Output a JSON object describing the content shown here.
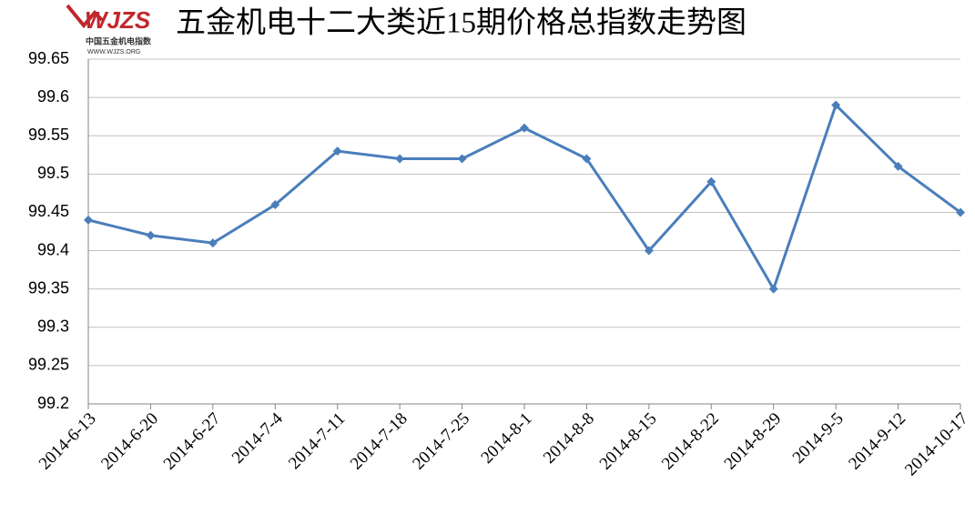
{
  "logo": {
    "mark": "WJZS",
    "name": "中国五金机电指数",
    "url": "WWW.WJZS.ORG"
  },
  "chart_data": {
    "type": "line",
    "title": "五金机电十二大类近15期价格总指数走势图",
    "categories": [
      "2014-6-13",
      "2014-6-20",
      "2014-6-27",
      "2014-7-4",
      "2014-7-11",
      "2014-7-18",
      "2014-7-25",
      "2014-8-1",
      "2014-8-8",
      "2014-8-15",
      "2014-8-22",
      "2014-8-29",
      "2014-9-5",
      "2014-9-12",
      "2014-10-17"
    ],
    "values": [
      99.44,
      99.42,
      99.41,
      99.46,
      99.53,
      99.52,
      99.52,
      99.56,
      99.52,
      99.4,
      99.49,
      99.35,
      99.59,
      99.51,
      99.45
    ],
    "color": "#4a7ebb",
    "ylim": [
      99.2,
      99.65
    ],
    "yticks": [
      99.2,
      99.25,
      99.3,
      99.35,
      99.4,
      99.45,
      99.5,
      99.55,
      99.6,
      99.65
    ],
    "grid": true
  }
}
